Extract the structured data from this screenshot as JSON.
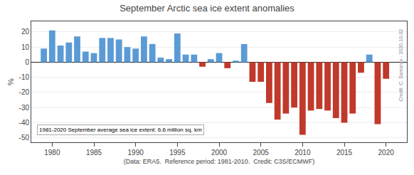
{
  "chart_data": {
    "type": "bar",
    "title": "September Arctic sea ice extent anomalies",
    "ylabel": "%",
    "xlabel": "(Data: ERA5.  Reference period: 1981-2010.  Credit: C3S/ECMWF)",
    "annotations": [
      "1981-2020 September average sea ice extent: 6.6 million sq. km",
      "Credit: C. Samaras - 2020-10-02"
    ],
    "x": [
      1979,
      1980,
      1981,
      1982,
      1983,
      1984,
      1985,
      1986,
      1987,
      1988,
      1989,
      1990,
      1991,
      1992,
      1993,
      1994,
      1995,
      1996,
      1997,
      1998,
      1999,
      2000,
      2001,
      2002,
      2003,
      2004,
      2005,
      2006,
      2007,
      2008,
      2009,
      2010,
      2011,
      2012,
      2013,
      2014,
      2015,
      2016,
      2017,
      2018,
      2019,
      2020
    ],
    "values": [
      9,
      21,
      11,
      13,
      17,
      7,
      6,
      16,
      16,
      15,
      10,
      9,
      17,
      12,
      3,
      2,
      19,
      5,
      5,
      -3,
      2,
      6,
      -4,
      1,
      12,
      -13,
      -13,
      -27,
      -38,
      -34,
      -30,
      -48,
      -32,
      -31,
      -32,
      -37,
      -40,
      -34,
      -7,
      5,
      -41,
      -11
    ],
    "colors": [
      "#5b9bd5",
      "#5b9bd5",
      "#5b9bd5",
      "#5b9bd5",
      "#5b9bd5",
      "#5b9bd5",
      "#5b9bd5",
      "#5b9bd5",
      "#5b9bd5",
      "#5b9bd5",
      "#5b9bd5",
      "#5b9bd5",
      "#5b9bd5",
      "#5b9bd5",
      "#5b9bd5",
      "#5b9bd5",
      "#5b9bd5",
      "#5b9bd5",
      "#5b9bd5",
      "#c0392b",
      "#5b9bd5",
      "#5b9bd5",
      "#c0392b",
      "#5b9bd5",
      "#5b9bd5",
      "#c0392b",
      "#c0392b",
      "#c0392b",
      "#c0392b",
      "#c0392b",
      "#c0392b",
      "#c0392b",
      "#c0392b",
      "#c0392b",
      "#c0392b",
      "#c0392b",
      "#c0392b",
      "#c0392b",
      "#c0392b",
      "#5b9bd5",
      "#c0392b",
      "#c0392b"
    ],
    "xlim": [
      1977.5,
      2022.5
    ],
    "xticks": [
      1980,
      1985,
      1990,
      1995,
      2000,
      2005,
      2010,
      2015,
      2020
    ],
    "ylim": [
      -53,
      27
    ],
    "yticks": [
      -50,
      -40,
      -30,
      -20,
      -10,
      0,
      10,
      20
    ],
    "grid": true
  }
}
